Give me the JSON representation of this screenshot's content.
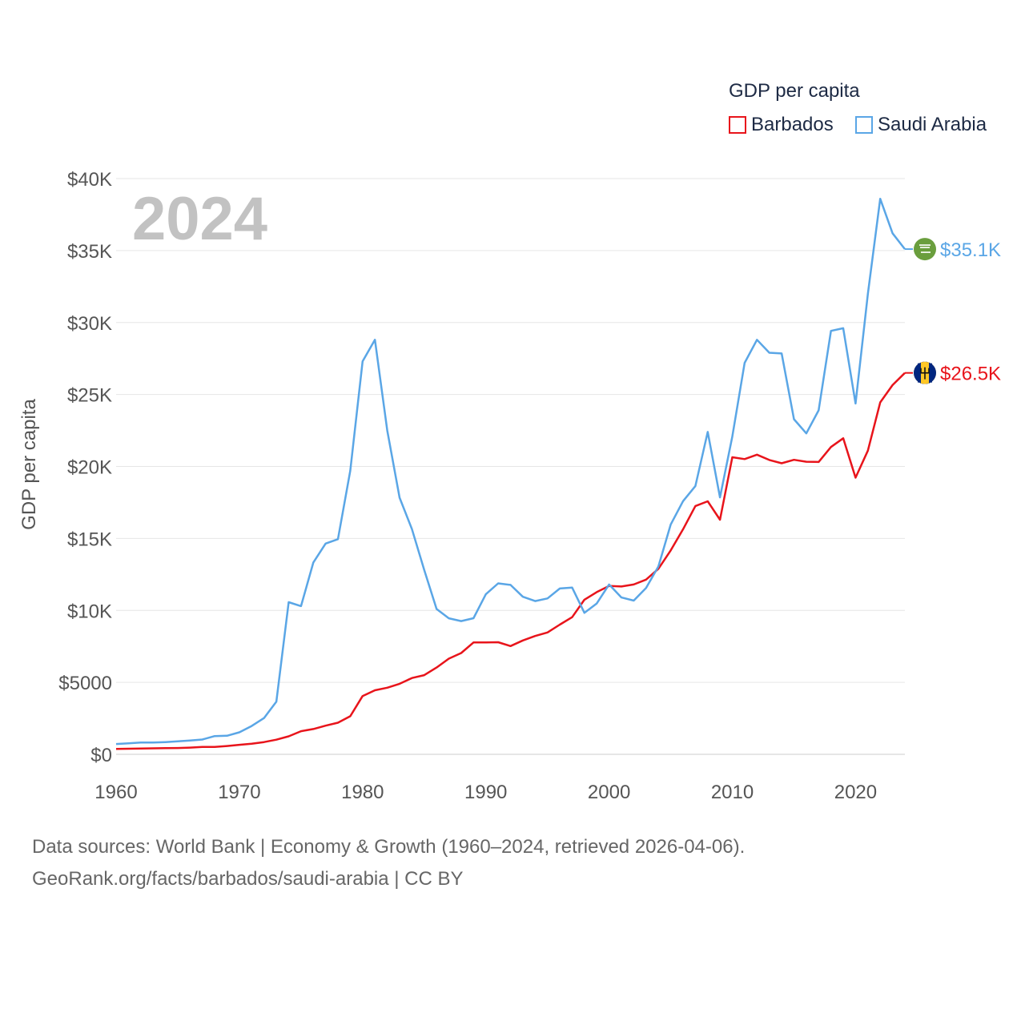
{
  "legend": {
    "title": "GDP per capita",
    "items": [
      {
        "label": "Barbados",
        "color": "#e8141b"
      },
      {
        "label": "Saudi Arabia",
        "color": "#5aa6e6"
      }
    ]
  },
  "year_label": "2024",
  "footer": {
    "line1": "Data sources: World Bank | Economy & Growth (1960–2024, retrieved 2026-04-06).",
    "line2": "GeoRank.org/facts/barbados/saudi-arabia | CC BY"
  },
  "chart_data": {
    "type": "line",
    "title": "GDP per capita",
    "xlabel": "",
    "ylabel": "GDP per capita",
    "xlim": [
      1960,
      2024
    ],
    "ylim": [
      0,
      40000
    ],
    "grid": true,
    "legend_position": "top-right",
    "x_ticks": [
      1960,
      1970,
      1980,
      1990,
      2000,
      2010,
      2020
    ],
    "x_tick_labels": [
      "1960",
      "1970",
      "1980",
      "1990",
      "2000",
      "2010",
      "2020"
    ],
    "y_ticks": [
      0,
      5000,
      10000,
      15000,
      20000,
      25000,
      30000,
      35000,
      40000
    ],
    "y_tick_labels": [
      "$0",
      "$5000",
      "$10K",
      "$15K",
      "$20K",
      "$25K",
      "$30K",
      "$35K",
      "$40K"
    ],
    "x": [
      1960,
      1961,
      1962,
      1963,
      1964,
      1965,
      1966,
      1967,
      1968,
      1969,
      1970,
      1971,
      1972,
      1973,
      1974,
      1975,
      1976,
      1977,
      1978,
      1979,
      1980,
      1981,
      1982,
      1983,
      1984,
      1985,
      1986,
      1987,
      1988,
      1989,
      1990,
      1991,
      1992,
      1993,
      1994,
      1995,
      1996,
      1997,
      1998,
      1999,
      2000,
      2001,
      2002,
      2003,
      2004,
      2005,
      2006,
      2007,
      2008,
      2009,
      2010,
      2011,
      2012,
      2013,
      2014,
      2015,
      2016,
      2017,
      2018,
      2019,
      2020,
      2021,
      2022,
      2023,
      2024
    ],
    "series": [
      {
        "name": "Barbados",
        "color": "#e8141b",
        "end_label": "$26.5K",
        "values": [
          380,
          390,
          400,
          420,
          430,
          440,
          470,
          510,
          510,
          580,
          660,
          740,
          850,
          1020,
          1250,
          1610,
          1760,
          1990,
          2200,
          2650,
          4050,
          4450,
          4630,
          4900,
          5300,
          5500,
          6030,
          6650,
          7040,
          7770,
          7780,
          7790,
          7520,
          7910,
          8220,
          8470,
          9010,
          9530,
          10740,
          11270,
          11700,
          11660,
          11800,
          12140,
          12890,
          14170,
          15640,
          17250,
          17580,
          16300,
          20640,
          20510,
          20820,
          20450,
          20220,
          20460,
          20330,
          20310,
          21350,
          21960,
          19220,
          21100,
          24450,
          25650,
          26500
        ]
      },
      {
        "name": "Saudi Arabia",
        "color": "#5aa6e6",
        "end_label": "$35.1K",
        "values": [
          720,
          770,
          820,
          820,
          850,
          900,
          960,
          1030,
          1270,
          1290,
          1530,
          1970,
          2520,
          3660,
          10570,
          10300,
          13330,
          14640,
          14950,
          19700,
          27300,
          28800,
          22500,
          17830,
          15650,
          12800,
          10100,
          9450,
          9260,
          9460,
          11120,
          11880,
          11770,
          10950,
          10650,
          10830,
          11520,
          11580,
          9830,
          10480,
          11800,
          10900,
          10680,
          11560,
          13050,
          15970,
          17590,
          18640,
          22400,
          17850,
          22080,
          27200,
          28800,
          27900,
          27850,
          23280,
          22300,
          23900,
          29420,
          29600,
          24370,
          32000,
          38600,
          36200,
          35100
        ]
      }
    ]
  }
}
